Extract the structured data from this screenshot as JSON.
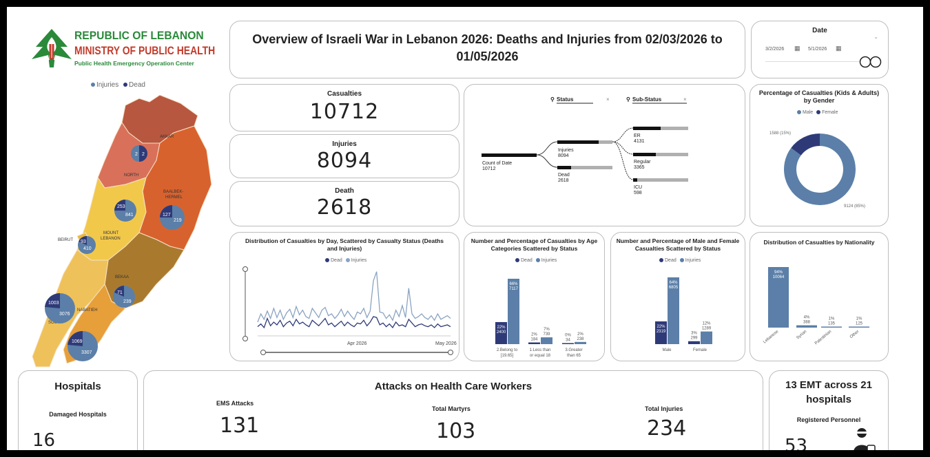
{
  "header": {
    "org_line1": "REPUBLIC OF LEBANON",
    "org_line2": "MINISTRY OF PUBLIC HEALTH",
    "org_line3": "Public Health Emergency Operation Center",
    "title": "Overview of Israeli War in Lebanon 2026: Deaths and Injuries from 02/03/2026 to 01/05/2026"
  },
  "date_filter": {
    "label": "Date",
    "start": "3/2/2026",
    "end": "5/1/2026"
  },
  "colors": {
    "injuries": "#5b7fa8",
    "dead": "#2e3a78",
    "bar_grey": "#b0b0b0",
    "akkar": "#b8573f",
    "north": "#d9715a",
    "baalbek": "#d8622e",
    "mount": "#f2c84b",
    "bekaa": "#a97a2e",
    "beirut": "#e8b840",
    "nabatieh": "#e79f3a",
    "south": "#efc15a"
  },
  "map": {
    "legend": {
      "injuries": "Injuries",
      "dead": "Dead"
    },
    "regions": [
      {
        "name": "AKKAR",
        "dead": null,
        "injuries": null
      },
      {
        "name": "NORTH",
        "dead": "2",
        "injuries": "2"
      },
      {
        "name": "BAALBEK-HERMEL",
        "dead": "127",
        "injuries": "219"
      },
      {
        "name": "MOUNT LEBANON",
        "dead": "253",
        "injuries": "841"
      },
      {
        "name": "BEIRUT",
        "dead": "93",
        "injuries": "410"
      },
      {
        "name": "BEKAA",
        "dead": "71",
        "injuries": "239"
      },
      {
        "name": "NABATIEH",
        "dead": "1069",
        "injuries": "3307"
      },
      {
        "name": "SOUTH",
        "dead": "1003",
        "injuries": "3076"
      }
    ],
    "labels": {
      "akkar": "AKKAR",
      "north": "NORTH",
      "baalbek1": "BAALBEK-",
      "baalbek2": "HERMEL",
      "mount1": "MOUNT",
      "mount2": "LEBANON",
      "beirut": "BEIRUT",
      "bekaa": "BEKAA",
      "nabatieh": "NABATIEH",
      "south": "SOUTH"
    }
  },
  "kpis": {
    "casualties": {
      "label": "Casualties",
      "value": "10712"
    },
    "injuries": {
      "label": "Injuries",
      "value": "8094"
    },
    "death": {
      "label": "Death",
      "value": "2618"
    }
  },
  "tree": {
    "status_label": "Status",
    "substatus_label": "Sub-Status",
    "root": {
      "label": "Count of Date",
      "value": "10712"
    },
    "level1": [
      {
        "label": "Injuries",
        "value": "8094"
      },
      {
        "label": "Dead",
        "value": "2618"
      }
    ],
    "level2": [
      {
        "label": "ER",
        "value": "4131"
      },
      {
        "label": "Regular",
        "value": "3365"
      },
      {
        "label": "ICU",
        "value": "598"
      }
    ]
  },
  "chart_data": [
    {
      "type": "pie",
      "title": "Percentage of Casualties (Kids & Adults) by Gender",
      "legend": [
        "Male",
        "Female"
      ],
      "slices": [
        {
          "name": "Female",
          "value": 1588,
          "label": "1588 (15%)"
        },
        {
          "name": "Male",
          "value": 9124,
          "label": "9124 (85%)"
        }
      ]
    },
    {
      "type": "line",
      "title": "Distribution of Casualties by Day, Scattered by Casualty Status (Deaths and Injuries)",
      "legend": [
        "Dead",
        "Injuries"
      ],
      "x_ticks": [
        "Apr 2026",
        "May 2026"
      ],
      "x_start": "2026-03-02",
      "x_end": "2026-05-01",
      "series": [
        {
          "name": "Dead",
          "values": [
            20,
            26,
            18,
            38,
            22,
            30,
            24,
            34,
            20,
            28,
            32,
            22,
            36,
            26,
            30,
            24,
            20,
            34,
            28,
            22,
            30,
            38,
            24,
            28,
            20,
            26,
            32,
            22,
            30,
            24,
            20,
            28,
            26,
            34,
            22,
            30,
            42,
            40,
            24,
            28,
            20,
            26,
            18,
            30,
            22,
            24,
            20,
            36,
            28,
            20,
            24,
            26,
            22,
            20,
            24,
            18,
            26,
            20,
            22,
            24,
            20
          ]
        },
        {
          "name": "Injuries",
          "values": [
            30,
            48,
            36,
            54,
            38,
            60,
            40,
            56,
            36,
            50,
            58,
            40,
            64,
            46,
            56,
            42,
            38,
            60,
            50,
            40,
            56,
            62,
            44,
            48,
            38,
            46,
            58,
            42,
            54,
            44,
            36,
            52,
            48,
            60,
            40,
            54,
            120,
            140,
            52,
            50,
            38,
            46,
            34,
            56,
            42,
            66,
            40,
            104,
            48,
            38,
            42,
            48,
            40,
            36,
            44,
            34,
            48,
            36,
            40,
            44,
            38
          ]
        }
      ]
    },
    {
      "type": "bar",
      "title": "Number and Percentage of Casualties by Age Categories Scattered by Status",
      "legend": [
        "Dead",
        "Injuries"
      ],
      "categories": [
        "2.Belong to [19.65]",
        "1.Less than or equal 18",
        "3.Greater than 65"
      ],
      "series": [
        {
          "name": "Dead",
          "values": [
            2400,
            184,
            34
          ],
          "labels": [
            "22%",
            "2%",
            "0%"
          ]
        },
        {
          "name": "Injuries",
          "values": [
            7117,
            739,
            238
          ],
          "labels": [
            "66%",
            "7%",
            "2%"
          ]
        }
      ]
    },
    {
      "type": "bar",
      "title": "Number and Percentage of Male and Female Casualties Scattered by Status",
      "legend": [
        "Dead",
        "Injuries"
      ],
      "categories": [
        "Male",
        "Female"
      ],
      "series": [
        {
          "name": "Dead",
          "values": [
            2319,
            299
          ],
          "labels": [
            "22%",
            "3%"
          ]
        },
        {
          "name": "Injuries",
          "values": [
            6805,
            1289
          ],
          "labels": [
            "64%",
            "12%"
          ]
        }
      ]
    },
    {
      "type": "bar",
      "title": "Distribution of Casualties by Nationality",
      "categories": [
        "Lebanese",
        "Syrian",
        "Palestinian",
        "Other"
      ],
      "values": [
        10064,
        388,
        135,
        125
      ],
      "labels": [
        "94%",
        "4%",
        "1%",
        "1%"
      ]
    }
  ],
  "hospitals": {
    "title": "Hospitals",
    "label": "Damaged Hospitals",
    "value": "16"
  },
  "attacks": {
    "title": "Attacks on Health Care Workers",
    "ems_label": "EMS Attacks",
    "ems_value": "131",
    "martyrs_label": "Total Martyrs",
    "martyrs_value": "103",
    "injuries_label": "Total Injuries",
    "injuries_value": "234"
  },
  "emt": {
    "title_line1": "13 EMT across 21",
    "title_line2": "hospitals",
    "label": "Registered Personnel",
    "value": "53"
  }
}
